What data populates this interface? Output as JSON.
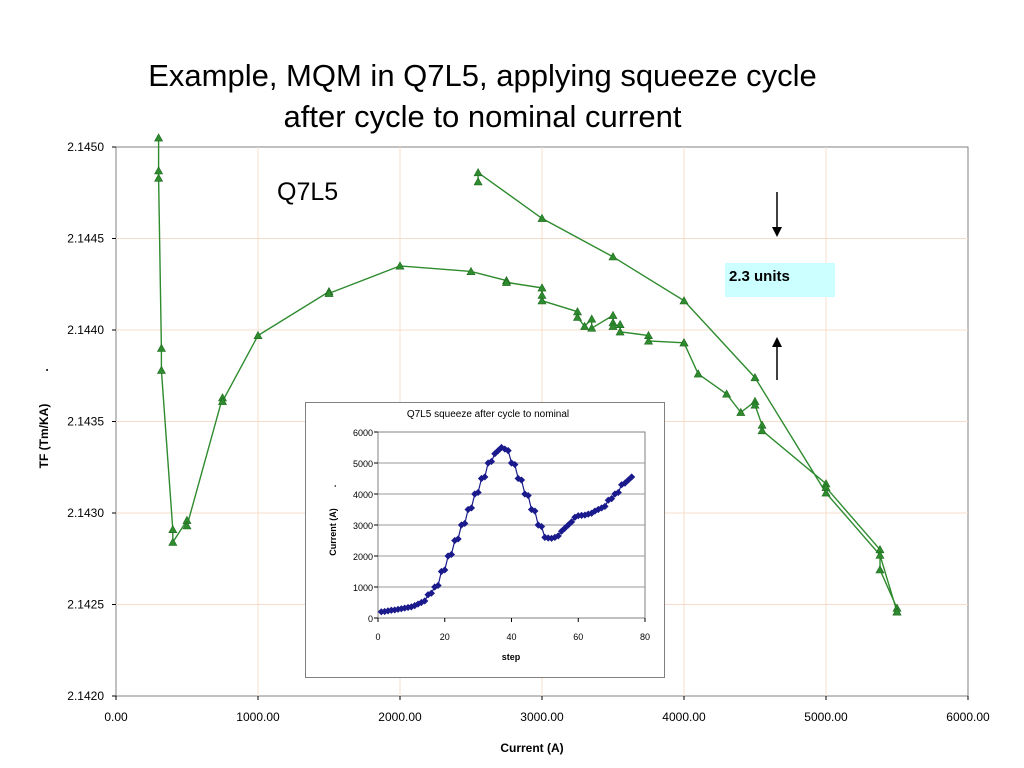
{
  "slide": {
    "title_line1": "Example, MQM in Q7L5, applying squeeze cycle",
    "title_line2": "after cycle to nominal current"
  },
  "chart_data": [
    {
      "type": "line",
      "title": "",
      "xlabel": "Current (A)",
      "ylabel": "TF (Tm/KA)",
      "ylabel_marker": ".",
      "xlim": [
        0,
        6000
      ],
      "ylim": [
        2.142,
        2.145
      ],
      "x_ticks": [
        "0.00",
        "1000.00",
        "2000.00",
        "3000.00",
        "4000.00",
        "5000.00",
        "6000.00"
      ],
      "y_ticks": [
        "2.1420",
        "2.1425",
        "2.1430",
        "2.1435",
        "2.1440",
        "2.1445",
        "2.1450"
      ],
      "grid": true,
      "annotations": {
        "magnet_label": "Q7L5",
        "note": "2.3 units"
      },
      "series_color": "#2e8b2e",
      "series": [
        {
          "x": [
            300,
            300,
            300,
            320,
            320,
            400,
            400,
            500,
            500,
            750,
            750,
            1000,
            1500,
            1500,
            2000,
            2500,
            2750,
            2750,
            3000,
            3000,
            3000,
            3250,
            3250,
            3300,
            3350,
            3350,
            3500,
            3500,
            3500,
            3550,
            3550,
            3750,
            3750,
            4000,
            4000,
            4100,
            4300,
            4400,
            4500,
            4500,
            4550,
            4550,
            5000,
            5000,
            5380,
            5380,
            5500,
            5500,
            5500,
            5380,
            5000,
            4500,
            4000,
            3500,
            3000,
            2550,
            2550
          ],
          "y": [
            2.14505,
            2.14487,
            2.14483,
            2.1439,
            2.14378,
            2.14291,
            2.14284,
            2.14296,
            2.14293,
            2.14363,
            2.14361,
            2.14397,
            2.14421,
            2.1442,
            2.14435,
            2.14432,
            2.14427,
            2.14426,
            2.14423,
            2.14419,
            2.14416,
            2.1441,
            2.14407,
            2.14402,
            2.14406,
            2.14401,
            2.14408,
            2.14404,
            2.14402,
            2.14403,
            2.14399,
            2.14397,
            2.14394,
            2.14393,
            2.14393,
            2.14376,
            2.14365,
            2.14355,
            2.14361,
            2.14359,
            2.14348,
            2.14345,
            2.14316,
            2.14314,
            2.1428,
            2.14269,
            2.14248,
            2.14246,
            2.14246,
            2.14277,
            2.14311,
            2.14374,
            2.14416,
            2.1444,
            2.14461,
            2.14486,
            2.14481
          ]
        }
      ]
    },
    {
      "type": "line",
      "title": "Q7L5 squeeze after cycle to nominal",
      "xlabel": "step",
      "ylabel": "Current (A)",
      "ylabel_marker": ".",
      "xlim": [
        0,
        80
      ],
      "ylim": [
        0,
        6000
      ],
      "x_ticks": [
        "0",
        "20",
        "40",
        "60",
        "80"
      ],
      "y_ticks": [
        "0",
        "1000",
        "2000",
        "3000",
        "4000",
        "5000",
        "6000"
      ],
      "grid": true,
      "series_color": "#1a1a8c",
      "series": [
        {
          "x": [
            1,
            2,
            3,
            4,
            5,
            6,
            7,
            8,
            9,
            10,
            11,
            12,
            13,
            14,
            15,
            16,
            17,
            18,
            19,
            20,
            21,
            22,
            23,
            24,
            25,
            26,
            27,
            28,
            29,
            30,
            31,
            32,
            33,
            34,
            35,
            36,
            37,
            38,
            39,
            40,
            41,
            42,
            43,
            44,
            45,
            46,
            47,
            48,
            49,
            50,
            51,
            52,
            53,
            54,
            55,
            56,
            57,
            58,
            59,
            60,
            61,
            62,
            63,
            64,
            65,
            66,
            67,
            68,
            69,
            70,
            71,
            72,
            73,
            74,
            75,
            76
          ],
          "y": [
            200,
            210,
            230,
            250,
            260,
            280,
            300,
            320,
            340,
            360,
            400,
            450,
            500,
            550,
            750,
            800,
            1000,
            1050,
            1500,
            1550,
            2000,
            2050,
            2500,
            2550,
            3000,
            3050,
            3500,
            3550,
            4000,
            4050,
            4500,
            4550,
            5000,
            5050,
            5300,
            5400,
            5500,
            5450,
            5400,
            5000,
            4950,
            4500,
            4450,
            4000,
            3950,
            3500,
            3450,
            3000,
            2950,
            2600,
            2580,
            2570,
            2600,
            2650,
            2800,
            2900,
            3000,
            3100,
            3250,
            3300,
            3310,
            3320,
            3350,
            3380,
            3450,
            3500,
            3550,
            3600,
            3800,
            3850,
            4000,
            4050,
            4300,
            4350,
            4450,
            4550
          ]
        }
      ]
    }
  ]
}
